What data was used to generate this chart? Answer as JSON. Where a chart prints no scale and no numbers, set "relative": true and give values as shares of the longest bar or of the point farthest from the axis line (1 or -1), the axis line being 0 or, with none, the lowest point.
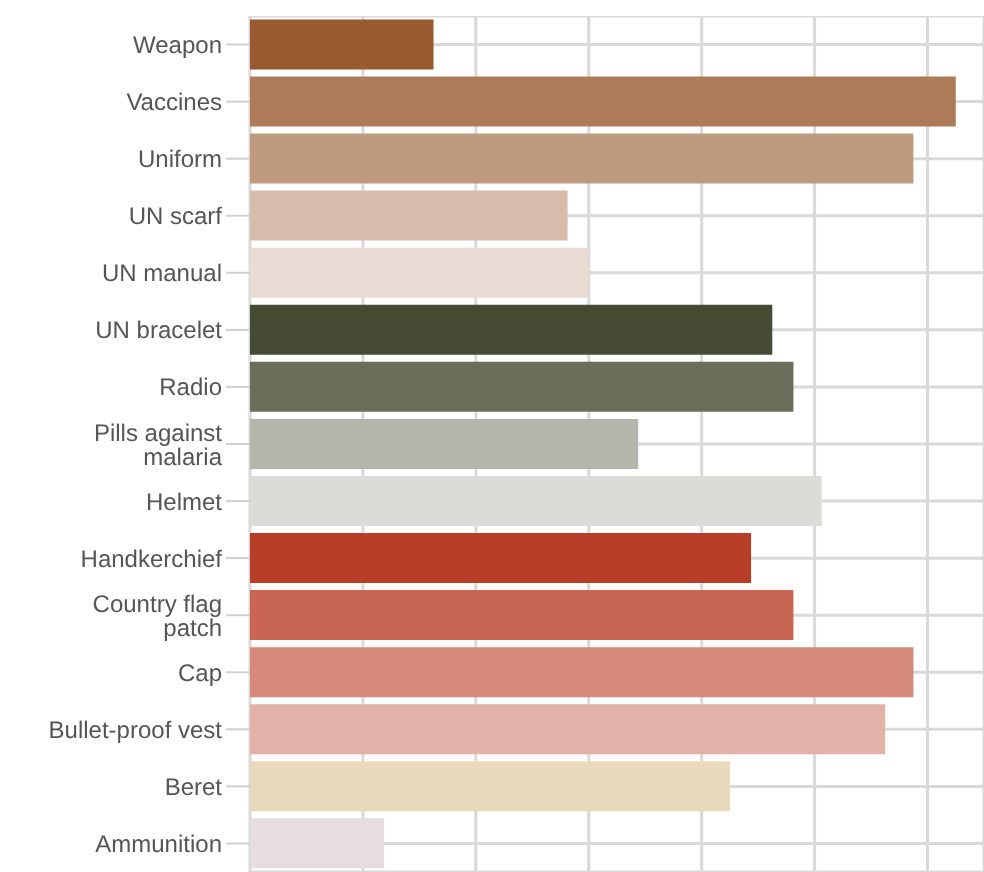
{
  "chart_data": {
    "type": "bar",
    "orientation": "horizontal",
    "relative": true,
    "grid": true,
    "categories": [
      "Weapon",
      "Vaccines",
      "Uniform",
      "UN scarf",
      "UN manual",
      "UN bracelet",
      "Radio",
      "Pills against malaria",
      "Helmet",
      "Handkerchief",
      "Country flag patch",
      "Cap",
      "Bullet-proof vest",
      "Beret",
      "Ammunition"
    ],
    "values": [
      0.26,
      1,
      0.94,
      0.45,
      0.48,
      0.74,
      0.77,
      0.55,
      0.81,
      0.71,
      0.77,
      0.94,
      0.9,
      0.68,
      0.19
    ],
    "colors": [
      "#9a5a2f",
      "#ae7b59",
      "#c09a7f",
      "#d7bbab",
      "#e8dcd4",
      "#454a33",
      "#6a6e5a",
      "#b4b6ab",
      "#dbdcd7",
      "#b83e28",
      "#c86653",
      "#d4897b",
      "#e2b1a7",
      "#e8d9bb",
      "#e6dde1"
    ]
  }
}
